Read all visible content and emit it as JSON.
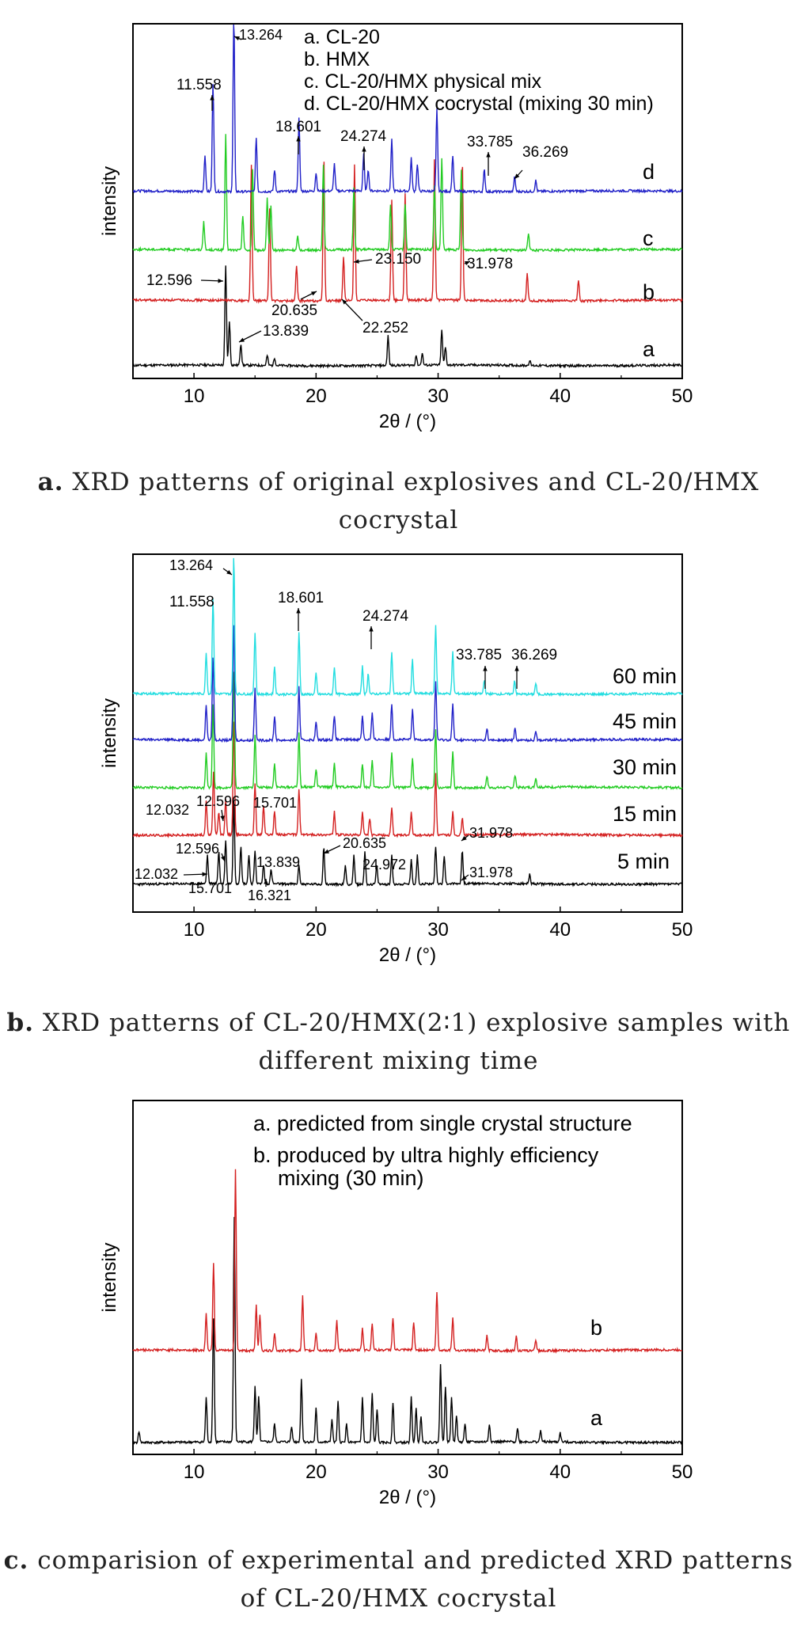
{
  "chart_data": [
    {
      "type": "line",
      "panel": "a",
      "xlabel": "2θ / (°)",
      "ylabel": "intensity",
      "xlim": [
        5,
        50
      ],
      "xticks": [
        10,
        20,
        30,
        40,
        50
      ],
      "legend": [
        "a. CL-20",
        "b. HMX",
        "c. CL-20/HMX physical mix",
        "d. CL-20/HMX cocrystal (mixing 30 min)"
      ],
      "series": [
        {
          "name": "a",
          "color": "#000000",
          "peaks": [
            [
              12.596,
              1.0
            ],
            [
              12.9,
              0.45
            ],
            [
              13.839,
              0.22
            ],
            [
              16.0,
              0.1
            ],
            [
              16.6,
              0.08
            ],
            [
              25.9,
              0.3
            ],
            [
              28.2,
              0.1
            ],
            [
              28.7,
              0.12
            ],
            [
              30.3,
              0.35
            ],
            [
              30.6,
              0.18
            ],
            [
              37.5,
              0.05
            ]
          ]
        },
        {
          "name": "b",
          "color": "#d42020",
          "peaks": [
            [
              14.7,
              0.95
            ],
            [
              16.2,
              0.65
            ],
            [
              18.4,
              0.25
            ],
            [
              20.635,
              1.0
            ],
            [
              22.252,
              0.3
            ],
            [
              23.15,
              0.95
            ],
            [
              26.2,
              0.7
            ],
            [
              27.3,
              0.75
            ],
            [
              29.7,
              0.98
            ],
            [
              31.978,
              1.0
            ],
            [
              37.3,
              0.2
            ],
            [
              41.5,
              0.15
            ]
          ]
        },
        {
          "name": "c",
          "color": "#22cc22",
          "peaks": [
            [
              10.8,
              0.25
            ],
            [
              12.6,
              1.0
            ],
            [
              14.0,
              0.3
            ],
            [
              14.8,
              0.7
            ],
            [
              16.0,
              0.45
            ],
            [
              16.3,
              0.38
            ],
            [
              18.5,
              0.12
            ],
            [
              20.6,
              0.75
            ],
            [
              23.1,
              0.55
            ],
            [
              26.1,
              0.38
            ],
            [
              27.3,
              0.4
            ],
            [
              29.7,
              0.55
            ],
            [
              30.3,
              0.8
            ],
            [
              31.9,
              0.7
            ],
            [
              37.4,
              0.15
            ]
          ]
        },
        {
          "name": "d",
          "color": "#2020c8",
          "peaks": [
            [
              10.9,
              0.2
            ],
            [
              11.558,
              0.6
            ],
            [
              13.264,
              1.0
            ],
            [
              15.1,
              0.3
            ],
            [
              16.6,
              0.12
            ],
            [
              18.601,
              0.4
            ],
            [
              20.0,
              0.1
            ],
            [
              21.5,
              0.15
            ],
            [
              23.9,
              0.2
            ],
            [
              24.274,
              0.12
            ],
            [
              26.2,
              0.28
            ],
            [
              27.8,
              0.18
            ],
            [
              28.3,
              0.15
            ],
            [
              29.9,
              0.45
            ],
            [
              31.2,
              0.2
            ],
            [
              33.785,
              0.12
            ],
            [
              36.269,
              0.08
            ],
            [
              38.0,
              0.06
            ]
          ]
        }
      ],
      "curve_labels": [
        "a",
        "b",
        "c",
        "d"
      ],
      "annotations": [
        "13.264",
        "11.558",
        "18.601",
        "24.274",
        "33.785",
        "36.269",
        "12.596",
        "20.635",
        "23.150",
        "31.978",
        "22.252",
        "13.839"
      ]
    },
    {
      "type": "line",
      "panel": "b",
      "xlabel": "2θ / (°)",
      "ylabel": "intensity",
      "xlim": [
        5,
        50
      ],
      "xticks": [
        10,
        20,
        30,
        40,
        50
      ],
      "series": [
        {
          "name": "5 min",
          "color": "#000000",
          "peaks": [
            [
              11.1,
              0.3
            ],
            [
              12.032,
              0.35
            ],
            [
              12.596,
              0.45
            ],
            [
              13.264,
              0.9
            ],
            [
              13.839,
              0.4
            ],
            [
              14.5,
              0.3
            ],
            [
              15.0,
              0.35
            ],
            [
              15.701,
              0.2
            ],
            [
              16.321,
              0.15
            ],
            [
              18.6,
              0.2
            ],
            [
              20.635,
              0.4
            ],
            [
              22.4,
              0.2
            ],
            [
              23.1,
              0.3
            ],
            [
              24.0,
              0.35
            ],
            [
              24.972,
              0.2
            ],
            [
              26.2,
              0.3
            ],
            [
              27.8,
              0.25
            ],
            [
              28.3,
              0.3
            ],
            [
              29.8,
              0.4
            ],
            [
              30.5,
              0.3
            ],
            [
              31.978,
              0.35
            ],
            [
              37.5,
              0.1
            ]
          ]
        },
        {
          "name": "15 min",
          "color": "#d42020",
          "peaks": [
            [
              11.0,
              0.3
            ],
            [
              11.6,
              0.55
            ],
            [
              12.032,
              0.2
            ],
            [
              12.596,
              0.3
            ],
            [
              13.264,
              1.0
            ],
            [
              15.0,
              0.45
            ],
            [
              15.701,
              0.25
            ],
            [
              16.6,
              0.2
            ],
            [
              18.6,
              0.4
            ],
            [
              21.5,
              0.2
            ],
            [
              23.8,
              0.2
            ],
            [
              24.4,
              0.15
            ],
            [
              26.2,
              0.25
            ],
            [
              27.8,
              0.2
            ],
            [
              29.8,
              0.55
            ],
            [
              31.2,
              0.2
            ],
            [
              31.978,
              0.15
            ]
          ]
        },
        {
          "name": "30 min",
          "color": "#22cc22",
          "peaks": [
            [
              11.0,
              0.3
            ],
            [
              11.558,
              0.7
            ],
            [
              13.264,
              1.0
            ],
            [
              15.0,
              0.45
            ],
            [
              16.6,
              0.2
            ],
            [
              18.6,
              0.45
            ],
            [
              20.0,
              0.15
            ],
            [
              21.5,
              0.2
            ],
            [
              23.8,
              0.2
            ],
            [
              24.6,
              0.22
            ],
            [
              26.2,
              0.3
            ],
            [
              27.9,
              0.25
            ],
            [
              29.8,
              0.5
            ],
            [
              31.2,
              0.3
            ],
            [
              34.0,
              0.1
            ],
            [
              36.3,
              0.1
            ],
            [
              38.0,
              0.08
            ]
          ]
        },
        {
          "name": "45 min",
          "color": "#2020c8",
          "peaks": [
            [
              11.0,
              0.3
            ],
            [
              11.558,
              0.7
            ],
            [
              13.264,
              1.0
            ],
            [
              15.0,
              0.45
            ],
            [
              16.6,
              0.2
            ],
            [
              18.6,
              0.45
            ],
            [
              20.0,
              0.15
            ],
            [
              21.5,
              0.2
            ],
            [
              23.8,
              0.2
            ],
            [
              24.6,
              0.22
            ],
            [
              26.2,
              0.3
            ],
            [
              27.9,
              0.25
            ],
            [
              29.8,
              0.5
            ],
            [
              31.2,
              0.3
            ],
            [
              34.0,
              0.1
            ],
            [
              36.3,
              0.1
            ],
            [
              38.0,
              0.08
            ]
          ]
        },
        {
          "name": "60 min",
          "color": "#22dde0",
          "peaks": [
            [
              11.0,
              0.3
            ],
            [
              11.558,
              0.7
            ],
            [
              13.264,
              1.0
            ],
            [
              15.0,
              0.45
            ],
            [
              16.6,
              0.2
            ],
            [
              18.601,
              0.45
            ],
            [
              20.0,
              0.15
            ],
            [
              21.5,
              0.2
            ],
            [
              23.8,
              0.2
            ],
            [
              24.274,
              0.15
            ],
            [
              26.2,
              0.3
            ],
            [
              27.9,
              0.25
            ],
            [
              29.8,
              0.5
            ],
            [
              31.2,
              0.3
            ],
            [
              33.785,
              0.1
            ],
            [
              36.269,
              0.1
            ],
            [
              38.0,
              0.08
            ]
          ]
        }
      ],
      "curve_labels": [
        "60 min",
        "45 min",
        "30 min",
        "15 min",
        "5 min"
      ],
      "annotations": [
        "13.264",
        "11.558",
        "18.601",
        "24.274",
        "33.785",
        "36.269",
        "12.032",
        "12.596",
        "15.701",
        "31.978",
        "12.596",
        "13.839",
        "20.635",
        "12.032",
        "24.972",
        "31.978",
        "15.701",
        "16.321"
      ]
    },
    {
      "type": "line",
      "panel": "c",
      "xlabel": "2θ / (°)",
      "ylabel": "intensity",
      "xlim": [
        5,
        50
      ],
      "xticks": [
        10,
        20,
        30,
        40,
        50
      ],
      "legend": [
        "a. predicted from single crystal structure",
        "b. produced by ultra highly efficiency mixing (30 min)"
      ],
      "series": [
        {
          "name": "a",
          "color": "#000000",
          "peaks": [
            [
              5.5,
              0.05
            ],
            [
              11.0,
              0.2
            ],
            [
              11.6,
              0.55
            ],
            [
              13.3,
              1.0
            ],
            [
              15.0,
              0.25
            ],
            [
              15.3,
              0.2
            ],
            [
              16.6,
              0.08
            ],
            [
              18.0,
              0.07
            ],
            [
              18.8,
              0.28
            ],
            [
              20.0,
              0.15
            ],
            [
              21.3,
              0.1
            ],
            [
              21.8,
              0.18
            ],
            [
              22.5,
              0.08
            ],
            [
              23.8,
              0.2
            ],
            [
              24.6,
              0.22
            ],
            [
              25.0,
              0.15
            ],
            [
              26.3,
              0.18
            ],
            [
              27.8,
              0.2
            ],
            [
              28.2,
              0.15
            ],
            [
              28.6,
              0.12
            ],
            [
              30.2,
              0.35
            ],
            [
              30.6,
              0.25
            ],
            [
              31.1,
              0.2
            ],
            [
              31.5,
              0.12
            ],
            [
              32.2,
              0.08
            ],
            [
              34.2,
              0.08
            ],
            [
              36.5,
              0.06
            ],
            [
              38.4,
              0.05
            ],
            [
              40.0,
              0.04
            ]
          ]
        },
        {
          "name": "b",
          "color": "#d42020",
          "peaks": [
            [
              11.0,
              0.2
            ],
            [
              11.6,
              0.48
            ],
            [
              13.4,
              1.0
            ],
            [
              15.1,
              0.25
            ],
            [
              15.4,
              0.2
            ],
            [
              16.6,
              0.1
            ],
            [
              18.9,
              0.3
            ],
            [
              20.0,
              0.1
            ],
            [
              21.7,
              0.16
            ],
            [
              23.8,
              0.12
            ],
            [
              24.6,
              0.15
            ],
            [
              26.3,
              0.18
            ],
            [
              28.0,
              0.15
            ],
            [
              29.9,
              0.32
            ],
            [
              31.2,
              0.18
            ],
            [
              34.0,
              0.08
            ],
            [
              36.4,
              0.08
            ],
            [
              38.0,
              0.06
            ]
          ]
        }
      ],
      "curve_labels": [
        "a",
        "b"
      ]
    }
  ],
  "captions": {
    "a": {
      "letter": "a.",
      "text": "XRD patterns of original explosives and CL-20/HMX cocrystal"
    },
    "b": {
      "letter": "b.",
      "text": "XRD patterns of CL-20/HMX(2∶1) explosive samples with different mixing time"
    },
    "c": {
      "letter": "c.",
      "text": "comparision of experimental and predicted XRD patterns of CL-20/HMX cocrystal"
    }
  }
}
